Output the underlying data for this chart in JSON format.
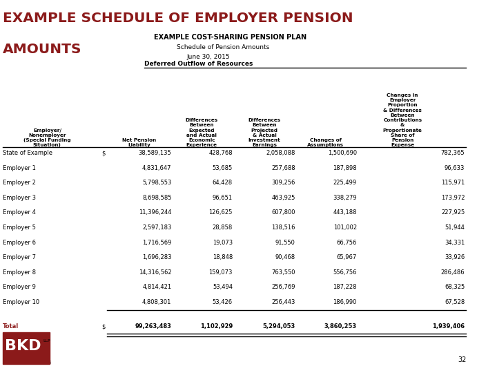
{
  "main_title_line1": "EXAMPLE SCHEDULE OF EMPLOYER PENSION",
  "main_title_line2": "AMOUNTS",
  "subtitle1": "EXAMPLE COST-SHARING PENSION PLAN",
  "subtitle2": "Schedule of Pension Amounts",
  "subtitle3": "June 30, 2015",
  "section_header": "Deferred Outflow of Resources",
  "col_headers": [
    "Employer/\nNonemployer\n(Special Funding\nSituation)",
    "",
    "Net Pension\nLiability",
    "Differences\nBetween\nExpected\nand Actual\nEconomic\nExperience",
    "Differences\nBetween\nProjected\n& Actual\nInvestment\nEarnings",
    "Changes of\nAssumptions",
    "Changes in\nEmployer\nProportion\n& Differences\nBetween\nContributions\n&\nProportionate\nShare of\nPension\nExpense"
  ],
  "rows": [
    [
      "State of Example",
      "$",
      "38,589,135",
      "428,768",
      "2,058,088",
      "1,500,690",
      "782,365"
    ],
    [
      "Employer 1",
      "",
      "4,831,647",
      "53,685",
      "257,688",
      "187,898",
      "96,633"
    ],
    [
      "Employer 2",
      "",
      "5,798,553",
      "64,428",
      "309,256",
      "225,499",
      "115,971"
    ],
    [
      "Employer 3",
      "",
      "8,698,585",
      "96,651",
      "463,925",
      "338,279",
      "173,972"
    ],
    [
      "Employer 4",
      "",
      "11,396,244",
      "126,625",
      "607,800",
      "443,188",
      "227,925"
    ],
    [
      "Employer 5",
      "",
      "2,597,183",
      "28,858",
      "138,516",
      "101,002",
      "51,944"
    ],
    [
      "Employer 6",
      "",
      "1,716,569",
      "19,073",
      "91,550",
      "66,756",
      "34,331"
    ],
    [
      "Employer 7",
      "",
      "1,696,283",
      "18,848",
      "90,468",
      "65,967",
      "33,926"
    ],
    [
      "Employer 8",
      "",
      "14,316,562",
      "159,073",
      "763,550",
      "556,756",
      "286,486"
    ],
    [
      "Employer 9",
      "",
      "4,814,421",
      "53,494",
      "256,769",
      "187,228",
      "68,325"
    ],
    [
      "Employer 10",
      "",
      "4,808,301",
      "53,426",
      "256,443",
      "186,990",
      "67,528"
    ]
  ],
  "total_row": [
    "Total",
    "$",
    "99,263,483",
    "1,102,929",
    "5,294,053",
    "3,860,253",
    "1,939,406"
  ],
  "bg_color": "#ffffff",
  "title_color": "#8B1A1A",
  "text_color": "#000000",
  "sidebar_color": "#c0c0c0",
  "page_number": "32"
}
